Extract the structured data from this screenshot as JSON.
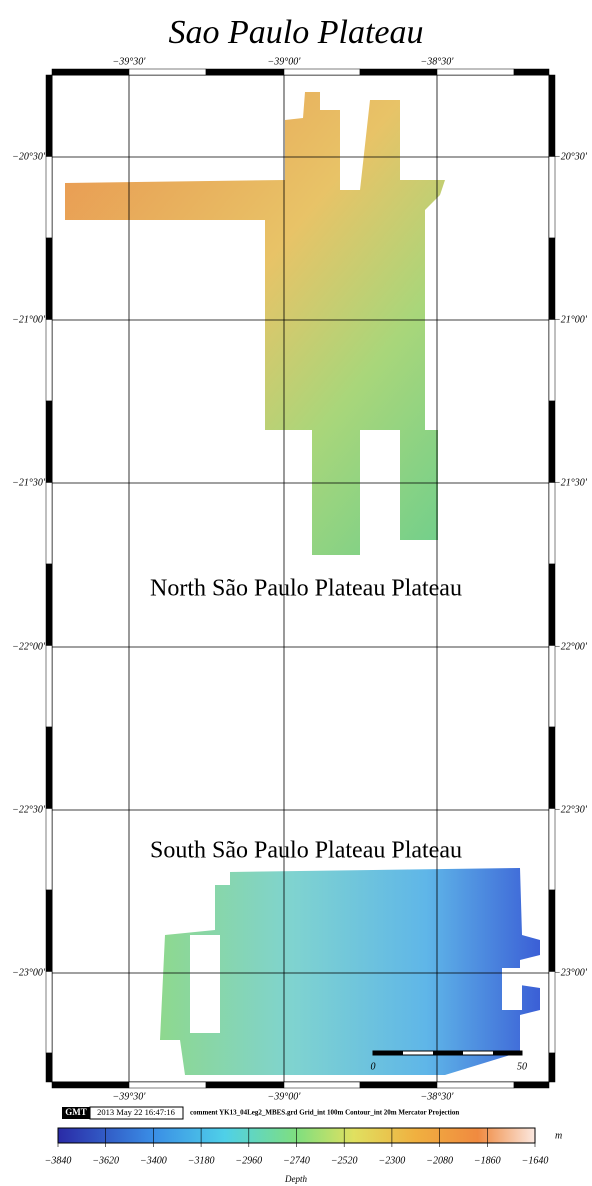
{
  "title": "Sao Paulo Plateau",
  "x_ticks": {
    "top": [
      "−39°30'",
      "−39°00'",
      "−38°30'"
    ],
    "bottom": [
      "−39°30'",
      "−39°00'",
      "−38°30'"
    ]
  },
  "y_ticks": {
    "left": [
      "−20°30'",
      "−21°00'",
      "−21°30'",
      "−22°00'",
      "−22°30'",
      "−23°00'"
    ],
    "right": [
      "−20°30'",
      "−21°00'",
      "−21°30'",
      "−22°00'",
      "−22°30'",
      "−23°00'"
    ]
  },
  "annotations": [
    "North São Paulo Plateau Plateau",
    "South São Paulo Plateau Plateau"
  ],
  "scale_bar": {
    "labels": [
      "0",
      "50"
    ]
  },
  "stamp": {
    "logo": "GMT",
    "time": "2013 May 22 16:47:16",
    "comment": "comment YK13_04Leg2_MBES.grd Grid_int 100m Contour_int 20m  Mercator Projection"
  },
  "colorbar": {
    "ticks": [
      "−3840",
      "−3620",
      "−3400",
      "−3180",
      "−2960",
      "−2740",
      "−2520",
      "−2300",
      "−2080",
      "−1860",
      "−1640"
    ],
    "unit": "m",
    "label": "Depth"
  }
}
